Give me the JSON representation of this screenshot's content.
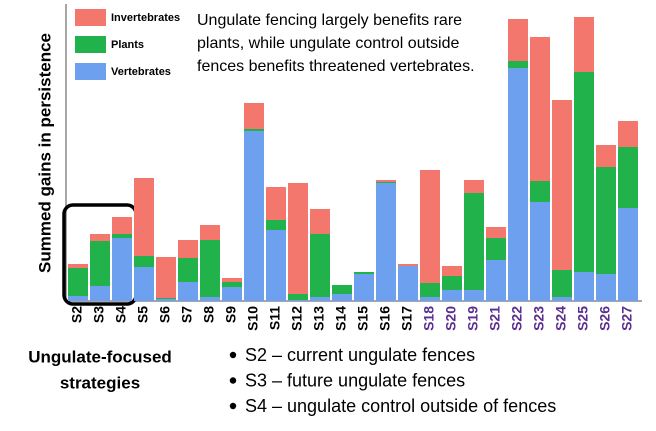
{
  "chart_data": {
    "type": "stacked_bar",
    "y_label": "Summed gains in persistence",
    "annotation": [
      "Ungulate fencing largely benefits rare",
      "plants, while ungulate control outside",
      "fences benefits threatened vertebrates."
    ],
    "categories": [
      "S2",
      "S3",
      "S4",
      "S5",
      "S6",
      "S7",
      "S8",
      "S9",
      "S10",
      "S11",
      "S12",
      "S13",
      "S14",
      "S15",
      "S16",
      "S17",
      "S18",
      "S20",
      "S19",
      "S21",
      "S22",
      "S23",
      "S24",
      "S25",
      "S26",
      "S27"
    ],
    "category_colors": [
      "#000000",
      "#000000",
      "#000000",
      "#000000",
      "#000000",
      "#000000",
      "#000000",
      "#000000",
      "#000000",
      "#000000",
      "#000000",
      "#000000",
      "#000000",
      "#000000",
      "#000000",
      "#000000",
      "#5a2d91",
      "#5a2d91",
      "#5a2d91",
      "#5a2d91",
      "#5a2d91",
      "#5a2d91",
      "#5a2d91",
      "#5a2d91",
      "#5a2d91",
      "#5a2d91"
    ],
    "series": [
      {
        "name": "Vertebrates",
        "color": "#6ea0f0",
        "values": [
          5,
          15,
          63,
          34,
          2,
          19,
          4,
          14,
          170,
          71,
          1,
          4,
          7,
          27,
          118,
          35,
          4,
          11,
          11,
          41,
          233,
          99,
          4,
          29,
          27,
          93
        ]
      },
      {
        "name": "Plants",
        "color": "#21b24b",
        "values": [
          28,
          45,
          4,
          11,
          1,
          24,
          57,
          5,
          2,
          10,
          6,
          63,
          9,
          2,
          1,
          0,
          14,
          14,
          97,
          22,
          7,
          21,
          27,
          200,
          107,
          61
        ]
      },
      {
        "name": "Invertebrates",
        "color": "#f4776d",
        "values": [
          4,
          7,
          17,
          78,
          41,
          18,
          15,
          4,
          26,
          33,
          111,
          25,
          0,
          0,
          2,
          2,
          113,
          10,
          13,
          11,
          42,
          144,
          170,
          55,
          22,
          26
        ]
      }
    ],
    "ylim": [
      0,
      290
    ],
    "highlight_title": [
      "Ungulate-focused",
      "strategies"
    ],
    "highlight_items": [
      "S2 – current ungulate fences",
      "S3 – future ungulate fences",
      "S4 – ungulate control outside of fences"
    ]
  }
}
